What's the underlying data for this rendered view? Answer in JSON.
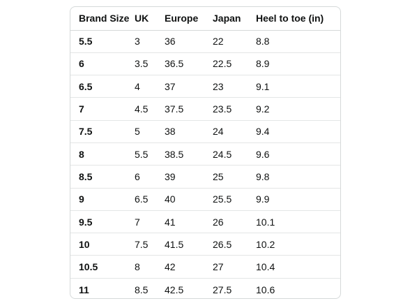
{
  "size_chart": {
    "headers": [
      "Brand Size",
      "UK",
      "Europe",
      "Japan",
      "Heel to toe (in)"
    ],
    "rows": [
      [
        "5.5",
        "3",
        "36",
        "22",
        "8.8"
      ],
      [
        "6",
        "3.5",
        "36.5",
        "22.5",
        "8.9"
      ],
      [
        "6.5",
        "4",
        "37",
        "23",
        "9.1"
      ],
      [
        "7",
        "4.5",
        "37.5",
        "23.5",
        "9.2"
      ],
      [
        "7.5",
        "5",
        "38",
        "24",
        "9.4"
      ],
      [
        "8",
        "5.5",
        "38.5",
        "24.5",
        "9.6"
      ],
      [
        "8.5",
        "6",
        "39",
        "25",
        "9.8"
      ],
      [
        "9",
        "6.5",
        "40",
        "25.5",
        "9.9"
      ],
      [
        "9.5",
        "7",
        "41",
        "26",
        "10.1"
      ],
      [
        "10",
        "7.5",
        "41.5",
        "26.5",
        "10.2"
      ],
      [
        "10.5",
        "8",
        "42",
        "27",
        "10.4"
      ],
      [
        "11",
        "8.5",
        "42.5",
        "27.5",
        "10.6"
      ]
    ]
  },
  "colors": {
    "text": "#0f1111",
    "border": "#d5d9d9",
    "row_divider": "#e3e6e6",
    "background": "#ffffff"
  }
}
